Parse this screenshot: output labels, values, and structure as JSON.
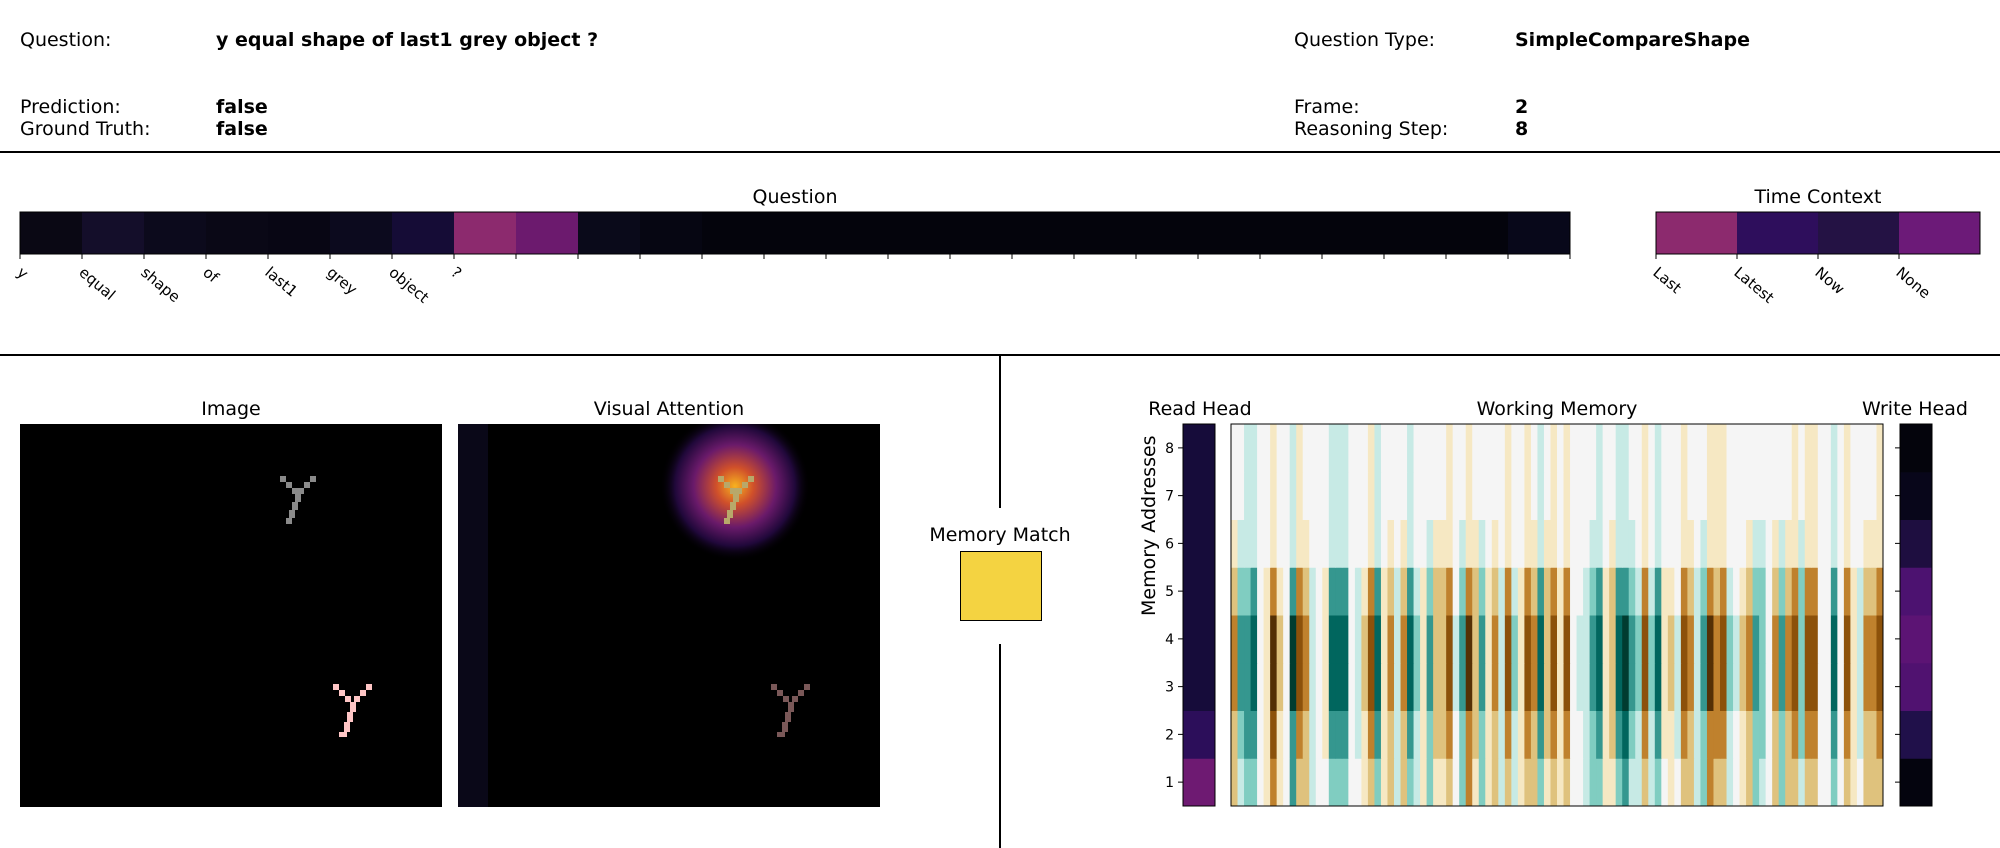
{
  "header": {
    "question_label": "Question:",
    "question_value": "y equal shape of last1 grey object ?",
    "question_type_label": "Question Type:",
    "question_type_value": "SimpleCompareShape",
    "prediction_label": "Prediction:",
    "prediction_value": "false",
    "ground_truth_label": "Ground Truth:",
    "ground_truth_value": "false",
    "frame_label": "Frame:",
    "frame_value": "2",
    "reasoning_step_label": "Reasoning Step:",
    "reasoning_step_value": "8"
  },
  "titles": {
    "question": "Question",
    "time_context": "Time Context",
    "image": "Image",
    "visual_attention": "Visual Attention",
    "memory_match": "Memory Match",
    "read_head": "Read Head",
    "working_memory": "Working Memory",
    "write_head": "Write Head",
    "memory_addresses": "Memory Addresses"
  },
  "colors": {
    "memory_match": "#f4d341",
    "image_bg": "#000000",
    "grey_object": "#808080",
    "pink_object": "#ffc0c0",
    "attention_peak": "#f6a623"
  },
  "chart_data": [
    {
      "type": "heatmap",
      "name": "question_attention",
      "categories": [
        "y",
        "equal",
        "shape",
        "of",
        "last1",
        "grey",
        "object",
        "?",
        "",
        "",
        "",
        "",
        "",
        "",
        "",
        "",
        "",
        "",
        "",
        "",
        "",
        "",
        "",
        "",
        ""
      ],
      "colors": [
        "#0a0814",
        "#140e2a",
        "#0c0a1c",
        "#0a0816",
        "#080614",
        "#0c0a1e",
        "#150c36",
        "#8c2a6e",
        "#6c1a6e",
        "#0a0a1a",
        "#060612",
        "#04040c",
        "#04040c",
        "#04040c",
        "#04040c",
        "#04040c",
        "#04040c",
        "#04040c",
        "#04040c",
        "#04040c",
        "#04040c",
        "#04040c",
        "#04040c",
        "#04040c",
        "#08081a"
      ]
    },
    {
      "type": "heatmap",
      "name": "time_context",
      "categories": [
        "Last",
        "Latest",
        "Now",
        "None"
      ],
      "colors": [
        "#8c2a6e",
        "#2e0e5c",
        "#241244",
        "#6c1a78"
      ]
    },
    {
      "type": "heatmap",
      "name": "read_head",
      "y_ticks": [
        1,
        2,
        3,
        4,
        5,
        6,
        7,
        8
      ],
      "colors": [
        "#6e1a72",
        "#2c0e5a",
        "#160c3a",
        "#160c3a",
        "#160c3a",
        "#160c3a",
        "#160c3a",
        "#160c3a"
      ]
    },
    {
      "type": "heatmap",
      "name": "write_head",
      "y_ticks": [
        1,
        2,
        3,
        4,
        5,
        6,
        7,
        8
      ],
      "colors": [
        "#04040e",
        "#20104a",
        "#501270",
        "#5c1474",
        "#4c1270",
        "#1e0e40",
        "#08061a",
        "#04040c"
      ]
    },
    {
      "type": "heatmap",
      "name": "memory_match",
      "colors": [
        "#f4d341"
      ]
    },
    {
      "type": "heatmap",
      "name": "working_memory",
      "y_ticks": [
        1,
        2,
        3,
        4,
        5,
        6,
        7,
        8
      ],
      "ylabel": "Memory Addresses",
      "rows": 8,
      "columns": 100,
      "colormap": "BrBG"
    }
  ]
}
